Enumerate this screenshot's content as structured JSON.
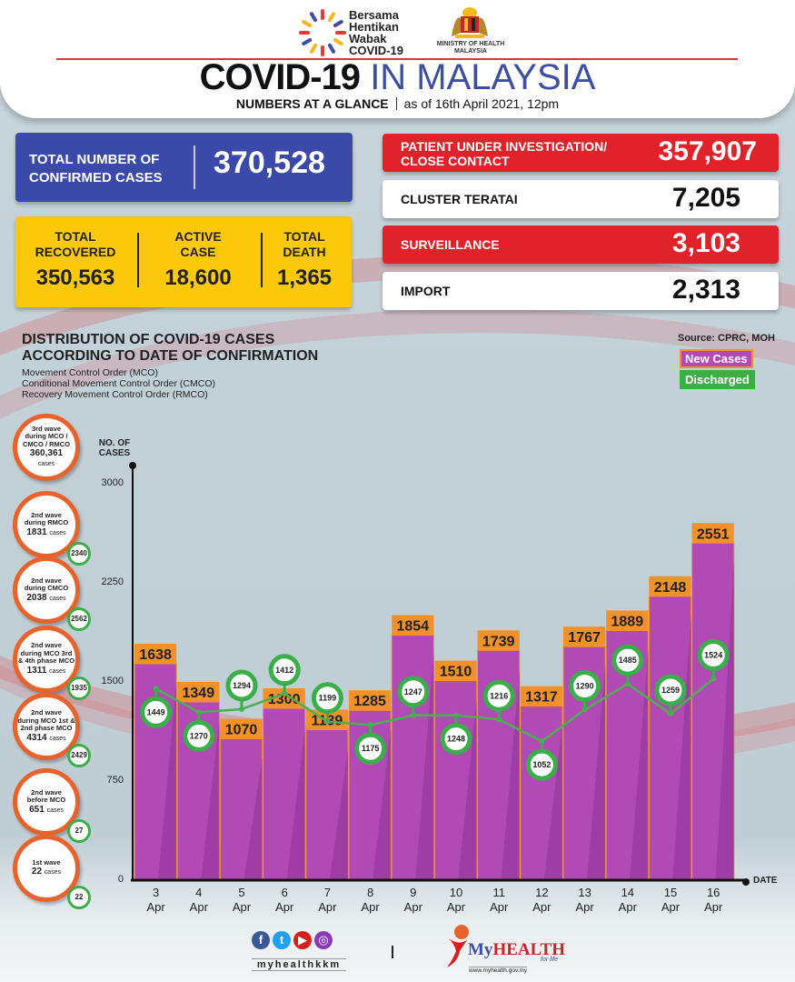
{
  "header": {
    "logo_text": [
      "Bersama",
      "Hentikan",
      "Wabak",
      "COVID-19"
    ],
    "ministry_text": [
      "MINISTRY OF HEALTH",
      "MALAYSIA"
    ],
    "title_bold": "COVID-19",
    "title_light": "IN MALAYSIA",
    "subtitle_bold": "NUMBERS AT A GLANCE",
    "subtitle_date": "as of 16th April 2021, 12pm"
  },
  "totals": {
    "confirmed_label_1": "TOTAL NUMBER OF",
    "confirmed_label_2": "CONFIRMED CASES",
    "confirmed_value": "370,528",
    "recovered_label_1": "TOTAL",
    "recovered_label_2": "RECOVERED",
    "recovered_value": "350,563",
    "active_label_1": "ACTIVE",
    "active_label_2": "CASE",
    "active_value": "18,600",
    "death_label_1": "TOTAL",
    "death_label_2": "DEATH",
    "death_value": "1,365"
  },
  "categories": [
    {
      "label_1": "PATIENT UNDER INVESTIGATION/",
      "label_2": "CLOSE CONTACT",
      "value": "357,907"
    },
    {
      "label_1": "CLUSTER TERATAI",
      "label_2": "",
      "value": "7,205"
    },
    {
      "label_1": "SURVEILLANCE",
      "label_2": "",
      "value": "3,103"
    },
    {
      "label_1": "IMPORT",
      "label_2": "",
      "value": "2,313"
    }
  ],
  "distribution": {
    "title_1": "DISTRIBUTION OF COVID-19 CASES",
    "title_2": "ACCORDING TO DATE OF CONFIRMATION",
    "legend_notes": [
      "Movement Control Order (MCO)",
      "Conditional Movement Control Order (CMCO)",
      "Recovery Movement Control Order (RMCO)"
    ],
    "source": "Source: CPRC, MOH"
  },
  "waves": [
    {
      "lines": [
        "3rd wave",
        "during MCO /",
        "CMCO / RMCO"
      ],
      "count": "360,361",
      "unit": "cases",
      "discharged": ""
    },
    {
      "lines": [
        "2nd wave",
        "during RMCO"
      ],
      "count": "1831",
      "unit": "cases",
      "discharged": "2340"
    },
    {
      "lines": [
        "2nd wave",
        "during CMCO"
      ],
      "count": "2038",
      "unit": "cases",
      "discharged": "2562"
    },
    {
      "lines": [
        "2nd wave",
        "during MCO 3rd",
        "& 4th phase MCO"
      ],
      "count": "1311",
      "unit": "cases",
      "discharged": "1935"
    },
    {
      "lines": [
        "2nd wave",
        "during MCO 1st &",
        "2nd phase MCO"
      ],
      "count": "4314",
      "unit": "cases",
      "discharged": "2429"
    },
    {
      "lines": [
        "2nd wave",
        "before MCO"
      ],
      "count": "651",
      "unit": "cases",
      "discharged": "27"
    },
    {
      "lines": [
        "1st wave"
      ],
      "count": "22",
      "unit": "cases",
      "discharged": "22"
    }
  ],
  "chart_data": {
    "type": "bar",
    "title": "DISTRIBUTION OF COVID-19 CASES ACCORDING TO DATE OF CONFIRMATION",
    "ylabel": "NO. OF CASES",
    "xlabel": "DATE",
    "ylim": [
      0,
      3000
    ],
    "yticks": [
      0,
      750,
      1500,
      2250,
      3000
    ],
    "categories": [
      "3 Apr",
      "4 Apr",
      "5 Apr",
      "6 Apr",
      "7 Apr",
      "8 Apr",
      "9 Apr",
      "10 Apr",
      "11 Apr",
      "12 Apr",
      "13 Apr",
      "14 Apr",
      "15 Apr",
      "16 Apr"
    ],
    "category_day": [
      "3",
      "4",
      "5",
      "6",
      "7",
      "8",
      "9",
      "10",
      "11",
      "12",
      "13",
      "14",
      "15",
      "16"
    ],
    "category_month": "Apr",
    "legend": [
      "New Cases",
      "Discharged"
    ],
    "legend_placement": "top-right",
    "series": [
      {
        "name": "New Cases",
        "type": "bar",
        "color": "#b24ab5",
        "label_color": "#f2902a",
        "values": [
          1638,
          1349,
          1070,
          1300,
          1139,
          1285,
          1854,
          1510,
          1739,
          1317,
          1767,
          1889,
          2148,
          2551
        ]
      },
      {
        "name": "Discharged",
        "type": "line",
        "color": "#3aae49",
        "values": [
          1449,
          1270,
          1294,
          1412,
          1199,
          1175,
          1247,
          1248,
          1216,
          1052,
          1290,
          1485,
          1259,
          1524
        ]
      }
    ]
  },
  "footer": {
    "social_handle": "myhealthkkm",
    "brand_my": "My",
    "brand_health": "HEALTH",
    "tagline": "for life",
    "url": "www.myhealth.gov.my"
  }
}
